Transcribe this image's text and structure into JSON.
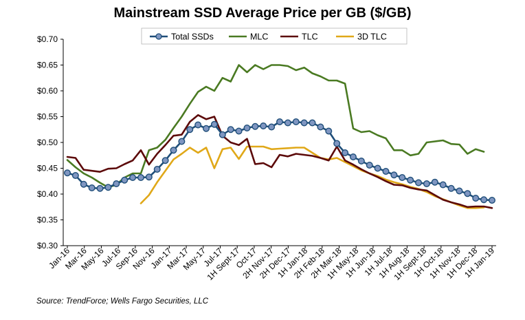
{
  "chart_data": {
    "type": "line",
    "title": "Mainstream SSD Average Price per GB ($/GB)",
    "source": "Source: TrendForce; Wells Fargo Securities, LLC",
    "xlabel": "",
    "ylabel": "",
    "ylim": [
      0.3,
      0.7
    ],
    "y_ticks": [
      "$0.30",
      "$0.35",
      "$0.40",
      "$0.45",
      "$0.50",
      "$0.55",
      "$0.60",
      "$0.65",
      "$0.70"
    ],
    "y_tick_values": [
      0.3,
      0.35,
      0.4,
      0.45,
      0.5,
      0.55,
      0.6,
      0.65,
      0.7
    ],
    "x_tick_labels": [
      "Jan-16",
      "Mar-16",
      "May-16",
      "Jul-16",
      "Sep-16",
      "Nov-16",
      "Jan-17",
      "Mar-17",
      "May-17",
      "Jul-17",
      "1H Sept-17",
      "Oct-17",
      "2H Nov-17",
      "2H Dec-17",
      "1H Jan-18",
      "2H Feb-18",
      "2H Mar-18",
      "1H May-18",
      "1H Jun-18",
      "1H Jul-18",
      "1H Aug-18",
      "1H Sept-18",
      "1H Oct-18",
      "1H Nov-18",
      "1H Dec-18",
      "1H Jan-19"
    ],
    "grid": false,
    "legend_position": "top",
    "series": [
      {
        "name": "Total SSDs",
        "color": "#1f4e79",
        "marker_fill": "#7f96c1",
        "markers": true,
        "values": [
          0.441,
          0.436,
          0.419,
          0.412,
          0.411,
          0.413,
          0.42,
          0.427,
          0.432,
          0.432,
          0.433,
          0.448,
          0.465,
          0.485,
          0.502,
          0.525,
          0.534,
          0.527,
          0.535,
          0.515,
          0.525,
          0.522,
          0.528,
          0.531,
          0.532,
          0.53,
          0.54,
          0.538,
          0.54,
          0.538,
          0.538,
          0.53,
          0.522,
          0.498,
          0.48,
          0.472,
          0.464,
          0.456,
          0.45,
          0.444,
          0.437,
          0.432,
          0.427,
          0.422,
          0.42,
          0.423,
          0.418,
          0.411,
          0.406,
          0.401,
          0.392,
          0.389,
          0.388
        ]
      },
      {
        "name": "MLC",
        "color": "#4a7a22",
        "markers": false,
        "values": [
          0.466,
          0.452,
          0.44,
          0.432,
          0.422,
          0.413,
          0.418,
          0.432,
          0.44,
          0.44,
          0.485,
          0.49,
          0.505,
          0.528,
          0.55,
          0.575,
          0.598,
          0.608,
          0.6,
          0.625,
          0.618,
          0.65,
          0.636,
          0.65,
          0.642,
          0.65,
          0.65,
          0.648,
          0.64,
          0.645,
          0.634,
          0.628,
          0.62,
          0.62,
          0.614,
          0.527,
          0.52,
          0.522,
          0.514,
          0.508,
          0.485,
          0.485,
          0.475,
          0.478,
          0.5,
          0.502,
          0.504,
          0.497,
          0.496,
          0.478,
          0.487,
          0.482
        ]
      },
      {
        "name": "TLC",
        "color": "#5c0a0a",
        "markers": false,
        "values": [
          0.472,
          0.47,
          0.447,
          0.445,
          0.443,
          0.449,
          0.45,
          0.458,
          0.465,
          0.485,
          0.457,
          0.478,
          0.495,
          0.513,
          0.515,
          0.54,
          0.553,
          0.545,
          0.55,
          0.513,
          0.5,
          0.495,
          0.507,
          0.458,
          0.46,
          0.452,
          0.476,
          0.473,
          0.478,
          0.476,
          0.474,
          0.47,
          0.465,
          0.492,
          0.465,
          0.457,
          0.448,
          0.44,
          0.433,
          0.425,
          0.418,
          0.417,
          0.412,
          0.409,
          0.407,
          0.398,
          0.389,
          0.384,
          0.38,
          0.375,
          0.376,
          0.376,
          0.373
        ]
      },
      {
        "name": "3D TLC",
        "color": "#e0a818",
        "markers": false,
        "x_start_index": 9,
        "values": [
          0.382,
          0.398,
          0.423,
          0.445,
          0.467,
          0.478,
          0.49,
          0.48,
          0.49,
          0.45,
          0.487,
          0.49,
          0.468,
          0.492,
          0.492,
          0.492,
          0.487,
          0.488,
          0.489,
          0.49,
          0.49,
          0.48,
          0.47,
          0.467,
          0.47,
          0.462,
          0.454,
          0.446,
          0.44,
          0.435,
          0.428,
          0.423,
          0.419,
          0.414,
          0.41,
          0.404,
          0.396,
          0.39,
          0.384,
          0.378,
          0.373,
          0.373,
          0.374
        ]
      }
    ]
  }
}
